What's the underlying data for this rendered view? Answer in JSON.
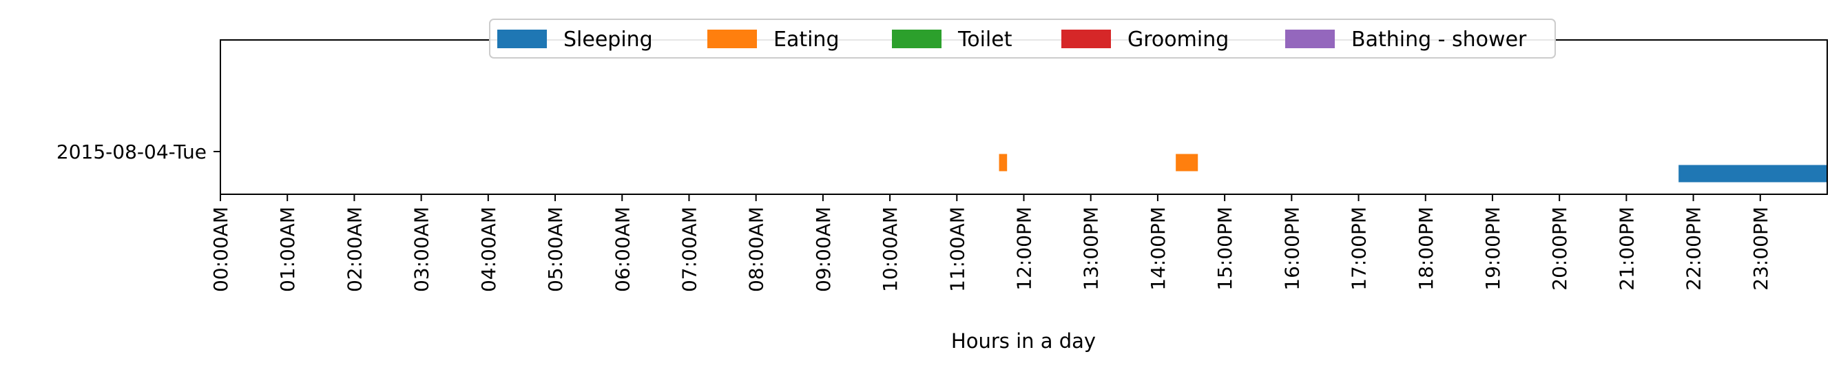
{
  "chart_data": {
    "type": "bar",
    "orientation": "horizontal-timeline",
    "xlabel": "Hours in a day",
    "x_range_hours": [
      0,
      24
    ],
    "x_ticks": [
      "00:00AM",
      "01:00AM",
      "02:00AM",
      "03:00AM",
      "04:00AM",
      "05:00AM",
      "06:00AM",
      "07:00AM",
      "08:00AM",
      "09:00AM",
      "10:00AM",
      "11:00AM",
      "12:00PM",
      "13:00PM",
      "14:00PM",
      "15:00PM",
      "16:00PM",
      "17:00PM",
      "18:00PM",
      "19:00PM",
      "20:00PM",
      "21:00PM",
      "22:00PM",
      "23:00PM"
    ],
    "categories": [
      "2015-08-04-Tue"
    ],
    "legend": {
      "placement": "top-center",
      "entries": [
        {
          "name": "Sleeping",
          "color": "#1f77b4"
        },
        {
          "name": "Eating",
          "color": "#ff7f0e"
        },
        {
          "name": "Toilet",
          "color": "#2ca02c"
        },
        {
          "name": "Grooming",
          "color": "#d62728"
        },
        {
          "name": "Bathing - shower",
          "color": "#9467bd"
        }
      ]
    },
    "series": [
      {
        "name": "Sleeping",
        "color": "#1f77b4",
        "segments": [
          {
            "category": "2015-08-04-Tue",
            "start_hour": 21.78,
            "end_hour": 24.0
          }
        ]
      },
      {
        "name": "Eating",
        "color": "#ff7f0e",
        "segments": [
          {
            "category": "2015-08-04-Tue",
            "start_hour": 11.63,
            "end_hour": 11.75
          },
          {
            "category": "2015-08-04-Tue",
            "start_hour": 14.27,
            "end_hour": 14.6
          }
        ]
      },
      {
        "name": "Toilet",
        "color": "#2ca02c",
        "segments": []
      },
      {
        "name": "Grooming",
        "color": "#d62728",
        "segments": []
      },
      {
        "name": "Bathing - shower",
        "color": "#9467bd",
        "segments": []
      }
    ]
  }
}
